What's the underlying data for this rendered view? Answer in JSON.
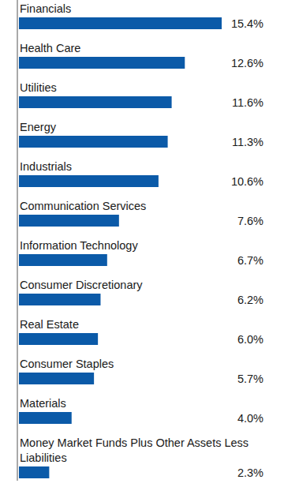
{
  "chart_data": {
    "type": "bar",
    "orientation": "horizontal",
    "categories": [
      "Financials",
      "Health Care",
      "Utilities",
      "Energy",
      "Industrials",
      "Communication Services",
      "Information Technology",
      "Consumer Discretionary",
      "Real Estate",
      "Consumer Staples",
      "Materials",
      "Money Market Funds Plus Other Assets Less Liabilities"
    ],
    "values": [
      15.4,
      12.6,
      11.6,
      11.3,
      10.6,
      7.6,
      6.7,
      6.2,
      6.0,
      5.7,
      4.0,
      2.3
    ],
    "value_labels": [
      "15.4%",
      "12.6%",
      "11.6%",
      "11.3%",
      "10.6%",
      "7.6%",
      "6.7%",
      "6.2%",
      "6.0%",
      "5.7%",
      "4.0%",
      "2.3%"
    ],
    "color": "#0b5aa8",
    "xlim": [
      0,
      15.4
    ],
    "data_labels": true,
    "tick_labels": false,
    "grid": false
  }
}
